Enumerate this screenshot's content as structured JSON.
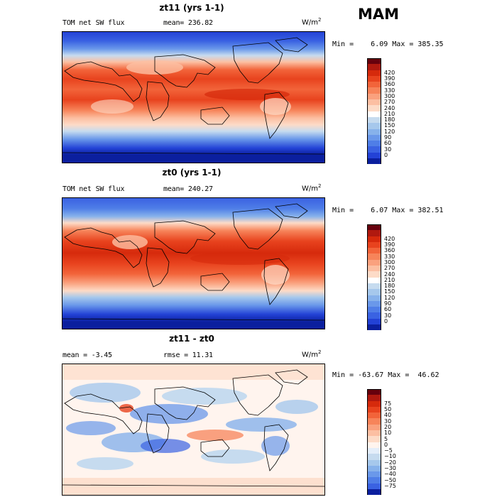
{
  "season": "MAM",
  "units_base": "W/m",
  "units_exp": "2",
  "panels": [
    {
      "title": "zt11 (yrs 1-1)",
      "field": "TOM net SW flux",
      "stat": "mean= 236.82",
      "minmax": "Min =    6.09 Max = 385.35",
      "colorbar": {
        "colors": [
          "#67000d",
          "#b0190f",
          "#d62a0c",
          "#e8431e",
          "#f2643a",
          "#f7845a",
          "#faa17e",
          "#fcbfa2",
          "#fddbc7",
          "#ffffff",
          "#c6dbef",
          "#a6c8ec",
          "#87b2eb",
          "#6a98ea",
          "#4f7ee7",
          "#3a62e2",
          "#2342d6",
          "#0b1f9e"
        ],
        "labels": [
          "420",
          "390",
          "360",
          "330",
          "300",
          "270",
          "240",
          "210",
          "180",
          "150",
          "120",
          "90",
          "60",
          "30",
          "0"
        ]
      }
    },
    {
      "title": "zt0 (yrs 1-1)",
      "field": "TOM net SW flux",
      "stat": "mean= 240.27",
      "minmax": "Min =    6.07 Max = 382.51",
      "colorbar": {
        "colors": [
          "#67000d",
          "#b0190f",
          "#d62a0c",
          "#e8431e",
          "#f2643a",
          "#f7845a",
          "#faa17e",
          "#fcbfa2",
          "#fddbc7",
          "#ffffff",
          "#c6dbef",
          "#a6c8ec",
          "#87b2eb",
          "#6a98ea",
          "#4f7ee7",
          "#3a62e2",
          "#2342d6",
          "#0b1f9e"
        ],
        "labels": [
          "420",
          "390",
          "360",
          "330",
          "300",
          "270",
          "240",
          "210",
          "180",
          "150",
          "120",
          "90",
          "60",
          "30",
          "0"
        ]
      }
    },
    {
      "title": "zt11 - zt0",
      "field": "mean =   -3.45",
      "stat": "rmse =   11.31",
      "minmax": "Min = -63.67 Max =  46.62",
      "colorbar": {
        "colors": [
          "#67000d",
          "#b0190f",
          "#d62a0c",
          "#e8431e",
          "#f2643a",
          "#f7845a",
          "#faa17e",
          "#fcbfa2",
          "#fddbc7",
          "#fff4ee",
          "#e4eefa",
          "#c6dbef",
          "#a6c8ec",
          "#87b2eb",
          "#6a98ea",
          "#4f7ee7",
          "#3a62e2",
          "#0b1f9e"
        ],
        "labels": [
          "75",
          "50",
          "40",
          "30",
          "20",
          "10",
          "5",
          "0",
          "−5",
          "−10",
          "−20",
          "−30",
          "−40",
          "−50",
          "−75"
        ]
      }
    }
  ]
}
